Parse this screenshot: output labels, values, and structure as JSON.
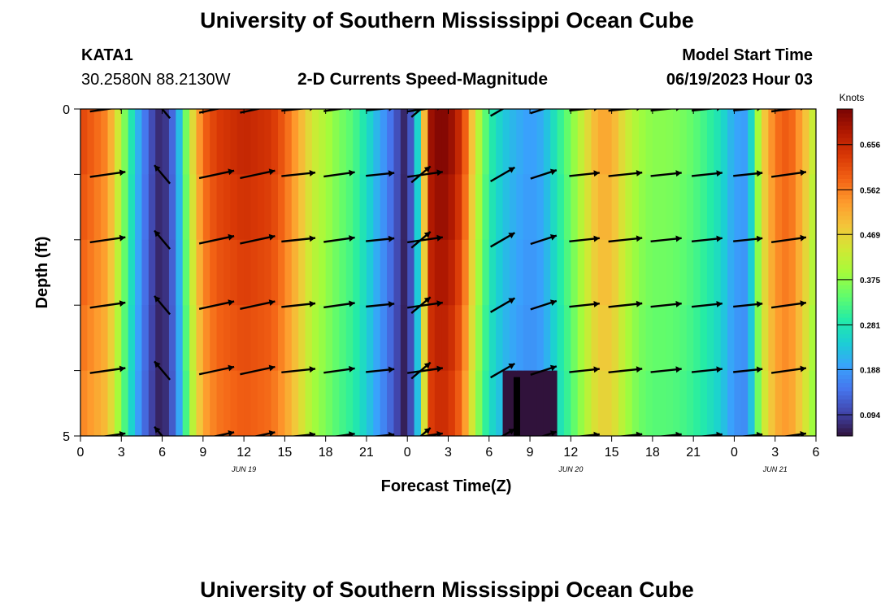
{
  "header": {
    "title": "University of Southern Mississippi Ocean Cube",
    "station": "KATA1",
    "coords": "30.2580N  88.2130W",
    "chart_title": "2-D Currents Speed-Magnitude",
    "model_start_label": "Model Start Time",
    "model_start_value": "06/19/2023 Hour 03"
  },
  "footer": {
    "title": "University of Southern Mississippi Ocean Cube"
  },
  "colors": {
    "colormap": [
      "#30123b",
      "#4145ab",
      "#4675ed",
      "#39a2fc",
      "#1bcfd4",
      "#24eca6",
      "#61fc6c",
      "#a4fc3b",
      "#d1e834",
      "#f3c63a",
      "#fe9b2d",
      "#f36315",
      "#d93806",
      "#b11901",
      "#7a0403"
    ]
  },
  "chart_data": {
    "type": "heatmap",
    "title": "2-D Currents Speed-Magnitude",
    "xlabel": "Forecast Time(Z)",
    "ylabel": "Depth (ft)",
    "x_tick_labels": [
      "0",
      "3",
      "6",
      "9",
      "12",
      "15",
      "18",
      "21",
      "0",
      "3",
      "6",
      "9",
      "12",
      "15",
      "18",
      "21",
      "0",
      "3",
      "6"
    ],
    "date_labels": [
      {
        "text": "JUN 19",
        "at_hour": 12
      },
      {
        "text": "JUN 20",
        "at_hour": 36
      },
      {
        "text": "JUN 21",
        "at_hour": 51
      }
    ],
    "x_range_hours": [
      0,
      54
    ],
    "y_tick_labels": [
      "0",
      "5"
    ],
    "y_range_ft": [
      0,
      5
    ],
    "colorbar": {
      "label": "Knots",
      "ticks": [
        "0.094",
        "0.188",
        "0.281",
        "0.375",
        "0.469",
        "0.562",
        "0.656"
      ],
      "range": [
        0.05,
        0.73
      ]
    },
    "depth_levels_ft": [
      0.5,
      1.5,
      2.5,
      3.5,
      4.5
    ],
    "speed_profile": {
      "hours": [
        0,
        2,
        3,
        4,
        5,
        6,
        7,
        8,
        9,
        10,
        12,
        14,
        15,
        16,
        17,
        18,
        19,
        20,
        21,
        22,
        23,
        24,
        25,
        25.5,
        26,
        27,
        28,
        29,
        30,
        31,
        32,
        33,
        34,
        35,
        36,
        37,
        38,
        39,
        40,
        41,
        42,
        43,
        44,
        45,
        46,
        47,
        48,
        49,
        50,
        51,
        52,
        53,
        54
      ],
      "knots": [
        0.62,
        0.55,
        0.4,
        0.24,
        0.12,
        0.06,
        0.16,
        0.42,
        0.58,
        0.63,
        0.66,
        0.64,
        0.59,
        0.52,
        0.44,
        0.4,
        0.36,
        0.33,
        0.27,
        0.2,
        0.13,
        0.05,
        0.32,
        0.68,
        0.72,
        0.72,
        0.64,
        0.44,
        0.3,
        0.24,
        0.21,
        0.19,
        0.21,
        0.29,
        0.36,
        0.44,
        0.52,
        0.52,
        0.44,
        0.39,
        0.37,
        0.37,
        0.36,
        0.34,
        0.31,
        0.27,
        0.2,
        0.19,
        0.46,
        0.57,
        0.6,
        0.52,
        0.4
      ],
      "bottom_min_hours": [
        31,
        35
      ],
      "bottom_min_knots": 0.03
    },
    "vectors": {
      "hours": [
        2,
        6,
        10,
        13,
        16,
        19,
        22,
        25,
        25.3,
        31,
        34,
        37,
        40,
        43,
        46,
        49,
        52
      ],
      "direction_deg": [
        8,
        130,
        12,
        12,
        6,
        8,
        6,
        40,
        8,
        30,
        18,
        6,
        6,
        6,
        6,
        6,
        8
      ],
      "speed_knots": [
        0.62,
        0.06,
        0.63,
        0.66,
        0.52,
        0.4,
        0.27,
        0.1,
        0.72,
        0.24,
        0.21,
        0.36,
        0.52,
        0.39,
        0.37,
        0.31,
        0.57
      ]
    }
  }
}
